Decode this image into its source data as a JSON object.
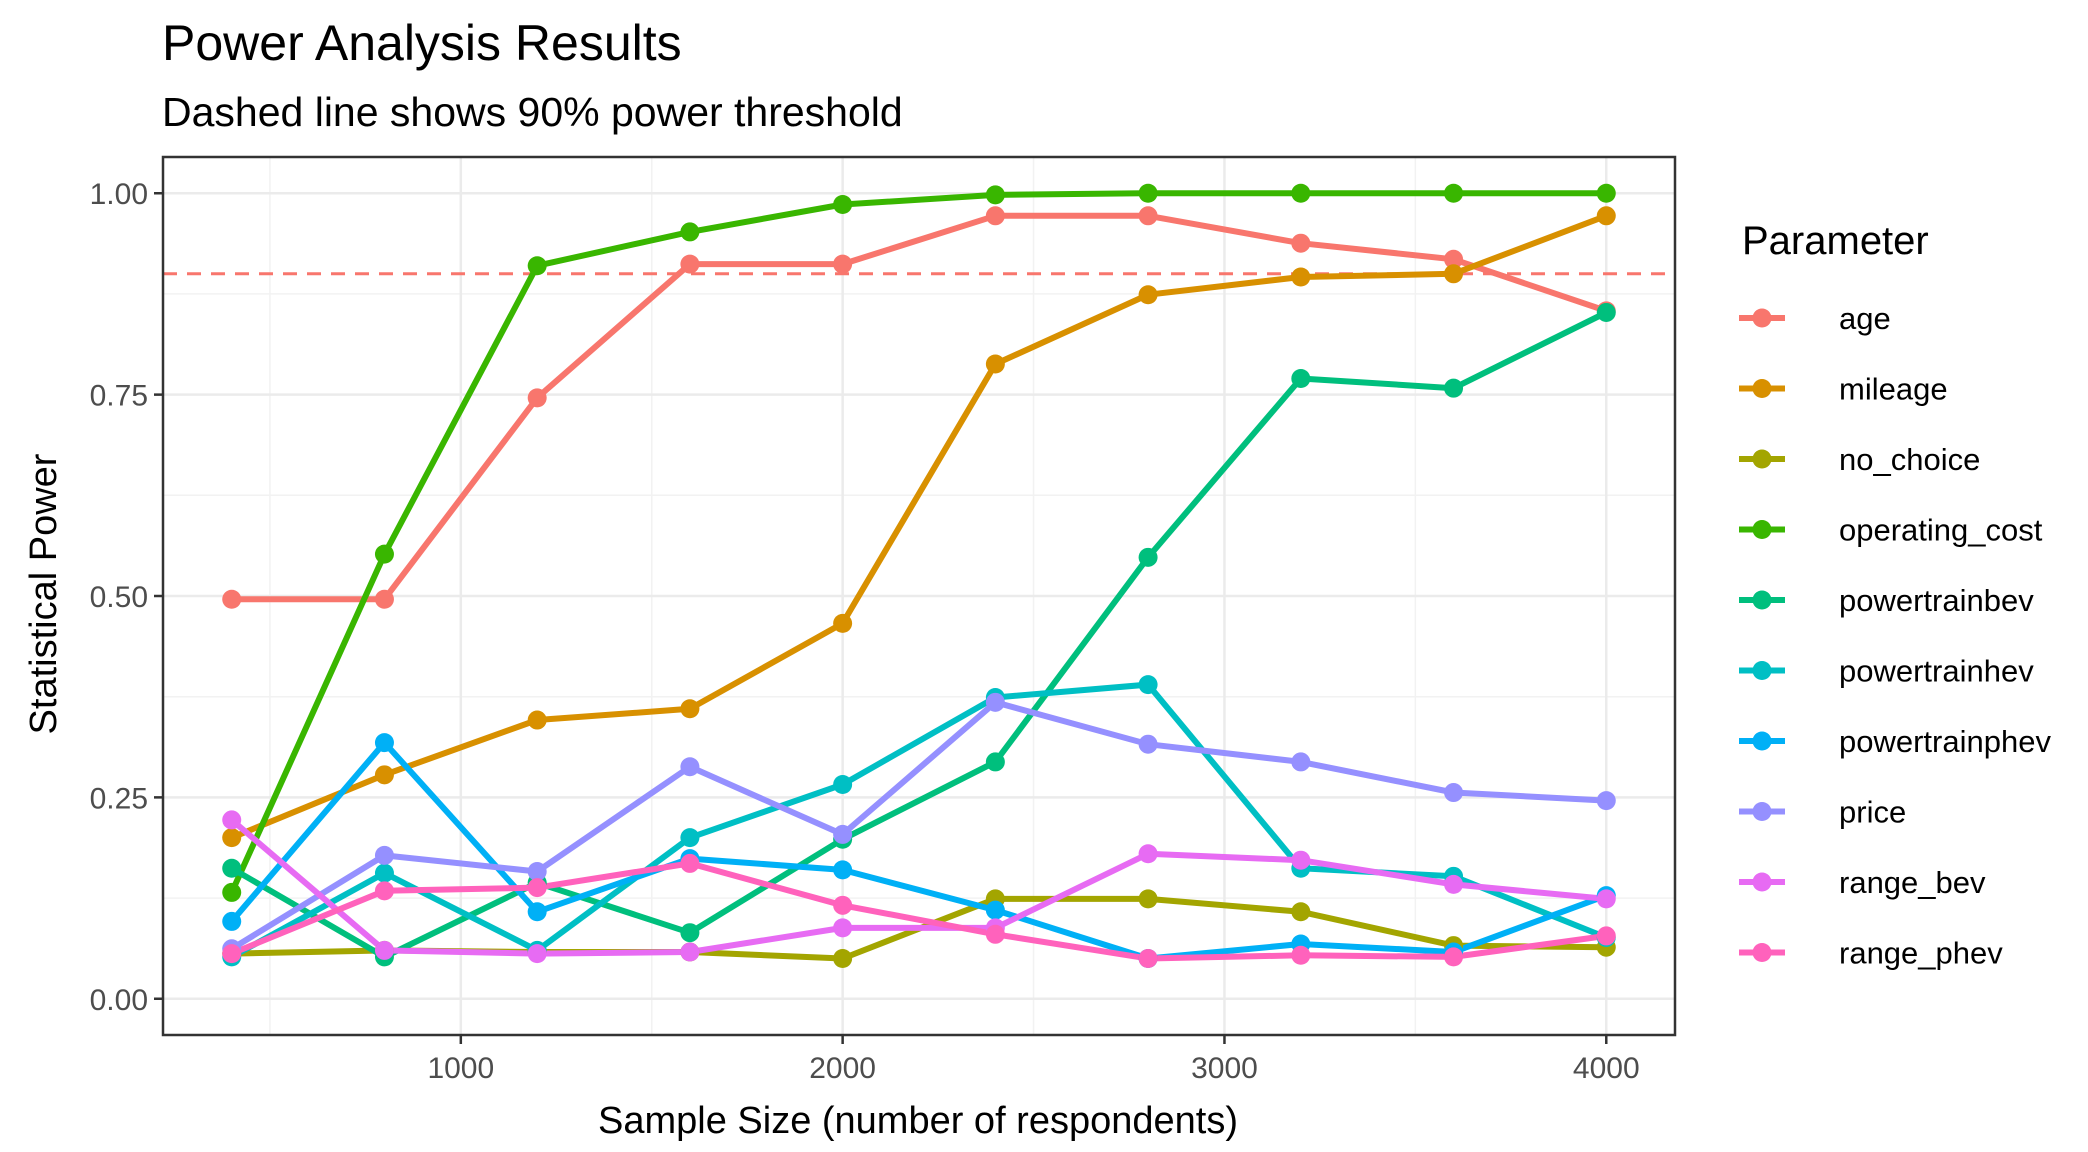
{
  "chart_data": {
    "type": "line",
    "title": "Power Analysis Results",
    "subtitle": "Dashed line shows 90% power threshold",
    "xlabel": "Sample Size (number of respondents)",
    "ylabel": "Statistical Power",
    "xlim": [
      220,
      4180
    ],
    "ylim": [
      -0.045,
      1.045
    ],
    "x_ticks": [
      1000,
      2000,
      3000,
      4000
    ],
    "x_tick_labels": [
      "1000",
      "2000",
      "3000",
      "4000"
    ],
    "y_ticks": [
      0,
      0.25,
      0.5,
      0.75,
      1.0
    ],
    "y_tick_labels": [
      "0.00",
      "0.25",
      "0.50",
      "0.75",
      "1.00"
    ],
    "grid": true,
    "threshold": {
      "value": 0.9,
      "color": "#F8766D",
      "style": "dashed"
    },
    "legend": {
      "title": "Parameter",
      "position": "right"
    },
    "x": [
      400,
      800,
      1200,
      1600,
      2000,
      2400,
      2800,
      3200,
      3600,
      4000
    ],
    "series": [
      {
        "name": "age",
        "color": "#F8766D",
        "values": [
          0.496,
          0.496,
          0.746,
          0.912,
          0.912,
          0.972,
          0.972,
          0.938,
          0.918,
          0.854
        ]
      },
      {
        "name": "mileage",
        "color": "#D89000",
        "values": [
          0.2,
          0.278,
          0.346,
          0.36,
          0.466,
          0.788,
          0.874,
          0.896,
          0.9,
          0.972
        ]
      },
      {
        "name": "no_choice",
        "color": "#A3A500",
        "values": [
          0.056,
          0.06,
          0.058,
          0.058,
          0.05,
          0.124,
          0.124,
          0.108,
          0.066,
          0.064
        ]
      },
      {
        "name": "operating_cost",
        "color": "#39B600",
        "values": [
          0.132,
          0.552,
          0.91,
          0.952,
          0.986,
          0.998,
          1.0,
          1.0,
          1.0,
          1.0
        ]
      },
      {
        "name": "powertrainbev",
        "color": "#00BF7D",
        "values": [
          0.162,
          0.052,
          0.144,
          0.082,
          0.198,
          0.294,
          0.548,
          0.77,
          0.758,
          0.852
        ]
      },
      {
        "name": "powertrainhev",
        "color": "#00BFC4",
        "values": [
          0.052,
          0.156,
          0.06,
          0.2,
          0.266,
          0.374,
          0.39,
          0.162,
          0.152,
          0.076
        ]
      },
      {
        "name": "powertrainphev",
        "color": "#00B0F6",
        "values": [
          0.096,
          0.318,
          0.108,
          0.174,
          0.16,
          0.11,
          0.05,
          0.068,
          0.058,
          0.128
        ]
      },
      {
        "name": "price",
        "color": "#9590FF",
        "values": [
          0.062,
          0.178,
          0.158,
          0.288,
          0.204,
          0.368,
          0.316,
          0.294,
          0.256,
          0.246
        ]
      },
      {
        "name": "range_bev",
        "color": "#E76BF3",
        "values": [
          0.222,
          0.06,
          0.056,
          0.058,
          0.088,
          0.088,
          0.18,
          0.172,
          0.142,
          0.124
        ]
      },
      {
        "name": "range_phev",
        "color": "#FF62BC",
        "values": [
          0.056,
          0.134,
          0.138,
          0.168,
          0.116,
          0.08,
          0.05,
          0.054,
          0.052,
          0.078
        ]
      }
    ]
  }
}
